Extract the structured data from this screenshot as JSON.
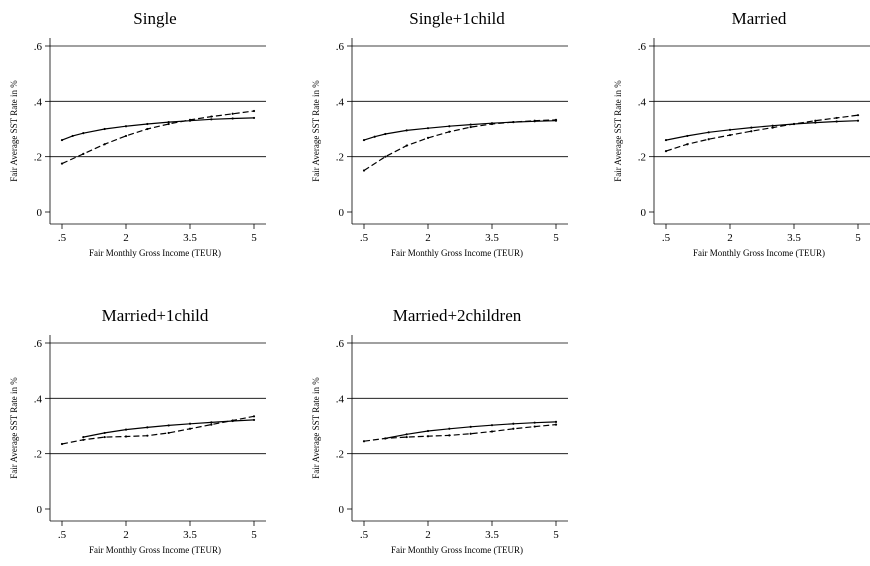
{
  "chart_data": [
    {
      "type": "line",
      "title": "Single",
      "xlabel": "Fair Monthly Gross Income (TEUR)",
      "ylabel": "Fair Average SST Rate in %",
      "xticks": [
        ".5",
        "2",
        "3.5",
        "5"
      ],
      "yticks": [
        "0",
        ".2",
        ".4",
        ".6"
      ],
      "xlim": [
        0.5,
        5
      ],
      "ylim": [
        0,
        0.6
      ],
      "grid": "horizontal",
      "series": [
        {
          "style": "solid",
          "x": [
            0.5,
            0.75,
            1,
            1.5,
            2,
            2.5,
            3,
            3.5,
            4,
            4.5,
            5
          ],
          "y": [
            0.26,
            0.275,
            0.285,
            0.3,
            0.31,
            0.318,
            0.325,
            0.33,
            0.335,
            0.338,
            0.34
          ]
        },
        {
          "style": "dashed",
          "x": [
            0.5,
            1,
            1.5,
            2,
            2.5,
            3,
            3.5,
            4,
            4.5,
            5
          ],
          "y": [
            0.175,
            0.21,
            0.245,
            0.275,
            0.3,
            0.318,
            0.333,
            0.345,
            0.355,
            0.365
          ]
        }
      ]
    },
    {
      "type": "line",
      "title": "Single+1child",
      "xlabel": "Fair Monthly Gross Income (TEUR)",
      "ylabel": "Fair Average SST Rate in %",
      "xticks": [
        ".5",
        "2",
        "3.5",
        "5"
      ],
      "yticks": [
        "0",
        ".2",
        ".4",
        ".6"
      ],
      "xlim": [
        0.5,
        5
      ],
      "ylim": [
        0,
        0.6
      ],
      "grid": "horizontal",
      "series": [
        {
          "style": "solid",
          "x": [
            0.5,
            0.75,
            1,
            1.5,
            2,
            2.5,
            3,
            3.5,
            4,
            4.5,
            5
          ],
          "y": [
            0.26,
            0.272,
            0.282,
            0.295,
            0.303,
            0.31,
            0.316,
            0.321,
            0.325,
            0.328,
            0.33
          ]
        },
        {
          "style": "dashed",
          "x": [
            0.5,
            1,
            1.5,
            2,
            2.5,
            3,
            3.5,
            4,
            4.5,
            5
          ],
          "y": [
            0.15,
            0.2,
            0.24,
            0.268,
            0.29,
            0.307,
            0.318,
            0.325,
            0.33,
            0.333
          ]
        }
      ]
    },
    {
      "type": "line",
      "title": "Married",
      "xlabel": "Fair Monthly Gross Income (TEUR)",
      "ylabel": "Fair Average SST Rate in %",
      "xticks": [
        ".5",
        "2",
        "3.5",
        "5"
      ],
      "yticks": [
        "0",
        ".2",
        ".4",
        ".6"
      ],
      "xlim": [
        0.5,
        5
      ],
      "ylim": [
        0,
        0.6
      ],
      "grid": "horizontal",
      "series": [
        {
          "style": "solid",
          "x": [
            0.5,
            1,
            1.5,
            2,
            2.5,
            3,
            3.5,
            4,
            4.5,
            5
          ],
          "y": [
            0.26,
            0.275,
            0.288,
            0.297,
            0.305,
            0.312,
            0.318,
            0.323,
            0.327,
            0.33
          ]
        },
        {
          "style": "dashed",
          "x": [
            0.5,
            1,
            1.5,
            2,
            2.5,
            3,
            3.5,
            4,
            4.5,
            5
          ],
          "y": [
            0.22,
            0.245,
            0.263,
            0.278,
            0.292,
            0.305,
            0.318,
            0.33,
            0.34,
            0.35
          ]
        }
      ]
    },
    {
      "type": "line",
      "title": "Married+1child",
      "xlabel": "Fair Monthly Gross Income (TEUR)",
      "ylabel": "Fair Average SST Rate in %",
      "xticks": [
        ".5",
        "2",
        "3.5",
        "5"
      ],
      "yticks": [
        "0",
        ".2",
        ".4",
        ".6"
      ],
      "xlim": [
        0.5,
        5
      ],
      "ylim": [
        0,
        0.6
      ],
      "grid": "horizontal",
      "series": [
        {
          "style": "solid",
          "x": [
            1,
            1.5,
            2,
            2.5,
            3,
            3.5,
            4,
            4.5,
            5
          ],
          "y": [
            0.26,
            0.275,
            0.287,
            0.295,
            0.302,
            0.308,
            0.313,
            0.318,
            0.322
          ]
        },
        {
          "style": "dashed",
          "x": [
            0.5,
            1,
            1.5,
            2,
            2.5,
            3,
            3.5,
            4,
            4.5,
            5
          ],
          "y": [
            0.235,
            0.25,
            0.26,
            0.262,
            0.265,
            0.275,
            0.29,
            0.305,
            0.32,
            0.335
          ]
        }
      ]
    },
    {
      "type": "line",
      "title": "Married+2children",
      "xlabel": "Fair Monthly Gross Income (TEUR)",
      "ylabel": "Fair Average SST Rate in %",
      "xticks": [
        ".5",
        "2",
        "3.5",
        "5"
      ],
      "yticks": [
        "0",
        ".2",
        ".4",
        ".6"
      ],
      "xlim": [
        0.5,
        5
      ],
      "ylim": [
        0,
        0.6
      ],
      "grid": "horizontal",
      "series": [
        {
          "style": "solid",
          "x": [
            1,
            1.5,
            2,
            2.5,
            3,
            3.5,
            4,
            4.5,
            5
          ],
          "y": [
            0.255,
            0.27,
            0.282,
            0.29,
            0.297,
            0.303,
            0.308,
            0.312,
            0.315
          ]
        },
        {
          "style": "dashed",
          "x": [
            0.5,
            1,
            1.5,
            2,
            2.5,
            3,
            3.5,
            4,
            4.5,
            5
          ],
          "y": [
            0.245,
            0.255,
            0.26,
            0.263,
            0.266,
            0.272,
            0.28,
            0.29,
            0.298,
            0.305
          ]
        }
      ]
    }
  ]
}
